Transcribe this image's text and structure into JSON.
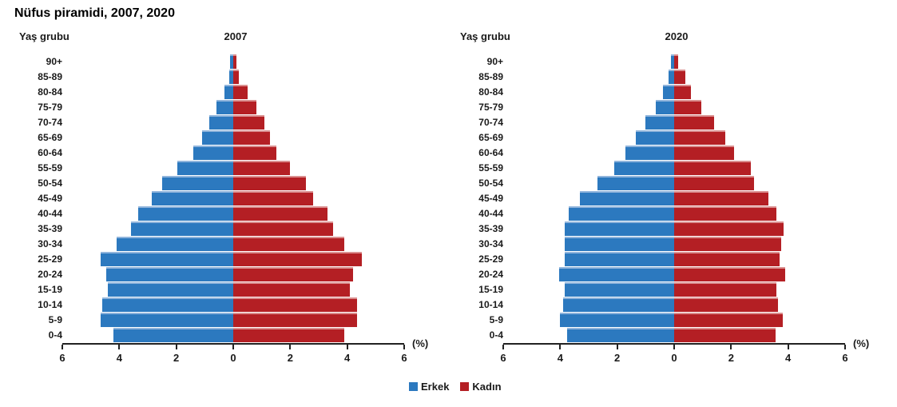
{
  "page_title": "Nüfus piramidi, 2007, 2020",
  "percent_label": "(%)",
  "colors": {
    "male": "#2c79bf",
    "female": "#b41f24",
    "axis": "#222222"
  },
  "legend": [
    {
      "label": "Erkek",
      "color": "#2c79bf"
    },
    {
      "label": "Kadın",
      "color": "#b41f24"
    }
  ],
  "chart_data": [
    {
      "type": "bar",
      "subtype": "population-pyramid",
      "title": "2007",
      "ylabel": "Yaş grubu",
      "xunit": "(%)",
      "xlim": [
        -6,
        6
      ],
      "xticks": [
        "6",
        "4",
        "2",
        "0",
        "2",
        "4",
        "6"
      ],
      "age_groups": [
        "90+",
        "85-89",
        "80-84",
        "75-79",
        "70-74",
        "65-69",
        "60-64",
        "55-59",
        "50-54",
        "45-49",
        "40-44",
        "35-39",
        "30-34",
        "25-29",
        "20-24",
        "15-19",
        "10-14",
        "5-9",
        "0-4"
      ],
      "series": [
        {
          "name": "Erkek",
          "values": [
            0.1,
            0.15,
            0.3,
            0.6,
            0.85,
            1.1,
            1.4,
            1.95,
            2.5,
            2.85,
            3.35,
            3.6,
            4.1,
            4.65,
            4.45,
            4.4,
            4.6,
            4.65,
            4.2
          ]
        },
        {
          "name": "Kadın",
          "values": [
            0.1,
            0.2,
            0.5,
            0.8,
            1.1,
            1.3,
            1.5,
            2.0,
            2.55,
            2.8,
            3.3,
            3.5,
            3.9,
            4.5,
            4.2,
            4.1,
            4.35,
            4.35,
            3.9
          ]
        }
      ]
    },
    {
      "type": "bar",
      "subtype": "population-pyramid",
      "title": "2020",
      "ylabel": "Yaş grubu",
      "xunit": "(%)",
      "xlim": [
        -6,
        6
      ],
      "xticks": [
        "6",
        "4",
        "2",
        "0",
        "2",
        "4",
        "6"
      ],
      "age_groups": [
        "90+",
        "85-89",
        "80-84",
        "75-79",
        "70-74",
        "65-69",
        "60-64",
        "55-59",
        "50-54",
        "45-49",
        "40-44",
        "35-39",
        "30-34",
        "25-29",
        "20-24",
        "15-19",
        "10-14",
        "5-9",
        "0-4"
      ],
      "series": [
        {
          "name": "Erkek",
          "values": [
            0.1,
            0.2,
            0.4,
            0.65,
            1.0,
            1.35,
            1.7,
            2.1,
            2.7,
            3.3,
            3.7,
            3.85,
            3.85,
            3.85,
            4.05,
            3.85,
            3.9,
            4.0,
            3.75
          ]
        },
        {
          "name": "Kadın",
          "values": [
            0.15,
            0.4,
            0.6,
            0.95,
            1.4,
            1.8,
            2.1,
            2.7,
            2.8,
            3.3,
            3.6,
            3.85,
            3.75,
            3.7,
            3.9,
            3.6,
            3.65,
            3.8,
            3.55
          ]
        }
      ]
    }
  ]
}
